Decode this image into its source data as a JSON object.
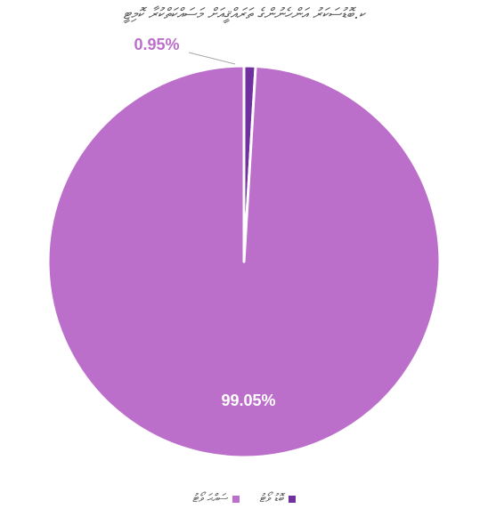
{
  "chart_data": {
    "type": "pie",
    "title": "ކ.ބޮޑުސަކަރު އަންހެނުންގެ ތަރައްޤީއަށް މަސައްކަތްކުރާ ކޮމިޓީ",
    "series": [
      {
        "name": "ބޮޑު ވޯޓު",
        "value": 0.95,
        "label": "0.95%",
        "color": "#7030A0"
      },
      {
        "name": "ސައްޙަ ވޯޓު",
        "value": 99.05,
        "label": "99.05%",
        "color": "#BC6ECB"
      }
    ],
    "legend_position": "bottom"
  }
}
